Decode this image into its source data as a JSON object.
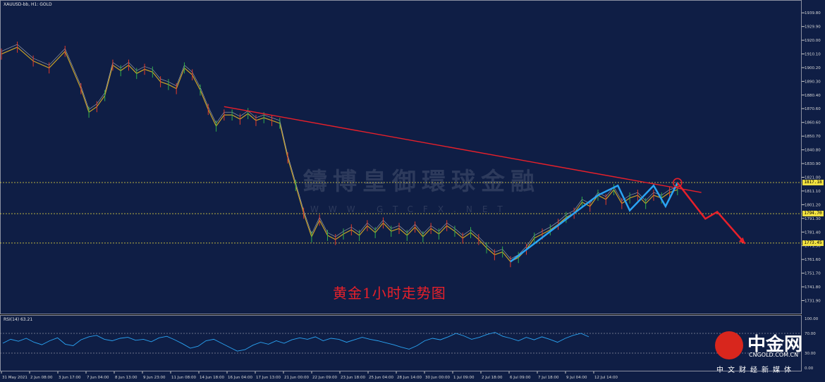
{
  "header": {
    "symbol": "XAUUSD-bb, H1:  GOLD"
  },
  "rsi": {
    "label": "RSI(14) 63.21",
    "ticks": [
      "100.00",
      "70.00",
      "30.00",
      "0.00"
    ]
  },
  "caption": "黄金1小时走势图",
  "watermark": {
    "name": "鑄博皇御環球金融",
    "url": "WWW.GTCFX.NET"
  },
  "logo": {
    "name": "中金网",
    "url": "CNGOLD.COM.CN",
    "sub": "中文财经新媒体"
  },
  "colors": {
    "background": "#0f1e45",
    "trendline": "#e8202a",
    "zigzag": "#2aa4f4",
    "level_line": "#f0e040"
  },
  "chart_data": {
    "type": "line",
    "title": "",
    "y_ticks": [
      "1939.80",
      "1929.90",
      "1920.00",
      "1910.10",
      "1900.20",
      "1890.30",
      "1880.40",
      "1870.60",
      "1860.60",
      "1850.70",
      "1840.80",
      "1830.90",
      "1821.00",
      "1811.10",
      "1801.20",
      "1791.30",
      "1781.40",
      "1771.50",
      "1761.60",
      "1751.70",
      "1741.80",
      "1731.90"
    ],
    "x_ticks": [
      "31 May 2021",
      "2 Jun 08:00",
      "3 Jun 17:00",
      "7 Jun 04:00",
      "8 Jun 13:00",
      "9 Jun 23:00",
      "11 Jun 08:00",
      "14 Jun 18:00",
      "16 Jun 04:00",
      "17 Jun 13:00",
      "21 Jun 00:00",
      "22 Jun 09:00",
      "23 Jun 18:00",
      "25 Jun 04:00",
      "28 Jun 14:00",
      "30 Jun 00:00",
      "1 Jul 09:00",
      "2 Jul 18:00",
      "6 Jul 09:00",
      "7 Jul 18:00",
      "9 Jul 04:00",
      "12 Jul 14:00"
    ],
    "ylim": [
      1725,
      1945
    ],
    "price": [
      [
        0,
        1910
      ],
      [
        4,
        1915
      ],
      [
        8,
        1905
      ],
      [
        12,
        1900
      ],
      [
        16,
        1912
      ],
      [
        20,
        1885
      ],
      [
        22,
        1868
      ],
      [
        24,
        1872
      ],
      [
        26,
        1880
      ],
      [
        28,
        1902
      ],
      [
        30,
        1898
      ],
      [
        32,
        1902
      ],
      [
        34,
        1896
      ],
      [
        36,
        1899
      ],
      [
        38,
        1897
      ],
      [
        40,
        1890
      ],
      [
        42,
        1888
      ],
      [
        44,
        1885
      ],
      [
        46,
        1900
      ],
      [
        48,
        1895
      ],
      [
        50,
        1884
      ],
      [
        52,
        1870
      ],
      [
        54,
        1858
      ],
      [
        56,
        1866
      ],
      [
        58,
        1866
      ],
      [
        60,
        1863
      ],
      [
        62,
        1867
      ],
      [
        64,
        1862
      ],
      [
        66,
        1864
      ],
      [
        68,
        1862
      ],
      [
        70,
        1860
      ],
      [
        72,
        1835
      ],
      [
        74,
        1815
      ],
      [
        76,
        1795
      ],
      [
        78,
        1778
      ],
      [
        80,
        1790
      ],
      [
        82,
        1779
      ],
      [
        84,
        1776
      ],
      [
        86,
        1780
      ],
      [
        88,
        1783
      ],
      [
        90,
        1779
      ],
      [
        92,
        1786
      ],
      [
        94,
        1781
      ],
      [
        96,
        1788
      ],
      [
        98,
        1782
      ],
      [
        100,
        1784
      ],
      [
        102,
        1779
      ],
      [
        104,
        1785
      ],
      [
        106,
        1778
      ],
      [
        108,
        1784
      ],
      [
        110,
        1780
      ],
      [
        112,
        1786
      ],
      [
        114,
        1782
      ],
      [
        116,
        1777
      ],
      [
        118,
        1781
      ],
      [
        120,
        1776
      ],
      [
        122,
        1770
      ],
      [
        124,
        1765
      ],
      [
        126,
        1767
      ],
      [
        128,
        1760
      ],
      [
        130,
        1763
      ],
      [
        132,
        1769
      ],
      [
        134,
        1777
      ],
      [
        136,
        1780
      ],
      [
        138,
        1783
      ],
      [
        140,
        1787
      ],
      [
        142,
        1792
      ],
      [
        144,
        1795
      ],
      [
        146,
        1803
      ],
      [
        148,
        1800
      ],
      [
        150,
        1808
      ],
      [
        152,
        1805
      ],
      [
        154,
        1812
      ],
      [
        156,
        1802
      ],
      [
        158,
        1806
      ],
      [
        160,
        1808
      ],
      [
        162,
        1802
      ],
      [
        164,
        1808
      ],
      [
        166,
        1806
      ],
      [
        168,
        1810
      ],
      [
        170,
        1812
      ]
    ],
    "trendline": [
      [
        56,
        1872
      ],
      [
        176,
        1810
      ]
    ],
    "zigzag": [
      [
        128,
        1760
      ],
      [
        144,
        1795
      ],
      [
        150,
        1808
      ],
      [
        155,
        1815
      ],
      [
        158,
        1797
      ],
      [
        164,
        1815
      ],
      [
        167,
        1800
      ],
      [
        170,
        1817
      ]
    ],
    "rsi": [
      50,
      58,
      54,
      60,
      52,
      47,
      55,
      61,
      48,
      45,
      57,
      63,
      66,
      58,
      55,
      60,
      62,
      56,
      58,
      53,
      61,
      64,
      57,
      49,
      40,
      44,
      55,
      58,
      50,
      42,
      34,
      37,
      46,
      52,
      48,
      55,
      50,
      57,
      61,
      58,
      63,
      55,
      60,
      58,
      52,
      57,
      62,
      58,
      55,
      51,
      47,
      42,
      38,
      45,
      55,
      60,
      57,
      63,
      70,
      65,
      58,
      62,
      68,
      72,
      64,
      60,
      55,
      62,
      57,
      63,
      58,
      52,
      60,
      66,
      70,
      63
    ],
    "levels": [
      {
        "label": "1817.18",
        "value": 1817.18
      },
      {
        "label": "1794.70",
        "value": 1794.7
      },
      {
        "label": "1773.45",
        "value": 1773.45
      }
    ]
  }
}
